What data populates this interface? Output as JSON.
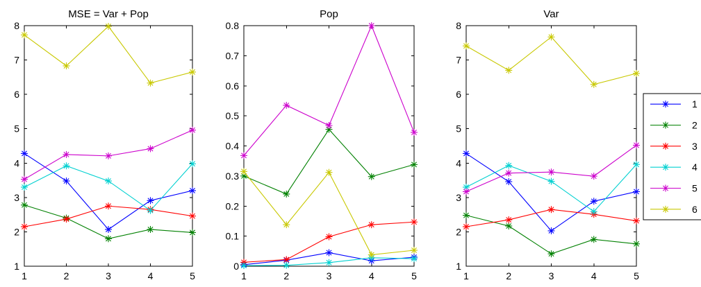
{
  "chart_data": [
    {
      "type": "line",
      "title": "MSE = Var + Pop",
      "x": [
        1,
        2,
        3,
        4,
        5
      ],
      "xlim": [
        1,
        5
      ],
      "ylim": [
        1,
        8
      ],
      "xticks": [
        "1",
        "2",
        "3",
        "4",
        "5"
      ],
      "yticks": [
        "1",
        "2",
        "3",
        "4",
        "5",
        "6",
        "7",
        "8"
      ],
      "series": [
        {
          "name": "1",
          "color": "#0000ff",
          "values": [
            4.28,
            3.48,
            2.07,
            2.91,
            3.2
          ]
        },
        {
          "name": "2",
          "color": "#008000",
          "values": [
            2.78,
            2.4,
            1.8,
            2.07,
            1.98
          ]
        },
        {
          "name": "3",
          "color": "#ff0000",
          "values": [
            2.15,
            2.37,
            2.75,
            2.65,
            2.46
          ]
        },
        {
          "name": "4",
          "color": "#00d0d0",
          "values": [
            3.3,
            3.92,
            3.48,
            2.62,
            3.98
          ]
        },
        {
          "name": "5",
          "color": "#cc00cc",
          "values": [
            3.53,
            4.25,
            4.21,
            4.42,
            4.96
          ]
        },
        {
          "name": "6",
          "color": "#c8c800",
          "values": [
            7.73,
            6.83,
            7.98,
            6.33,
            6.65
          ]
        }
      ]
    },
    {
      "type": "line",
      "title": "Pop",
      "x": [
        1,
        2,
        3,
        4,
        5
      ],
      "xlim": [
        1,
        5
      ],
      "ylim": [
        0,
        0.8
      ],
      "xticks": [
        "1",
        "2",
        "3",
        "4",
        "5"
      ],
      "yticks": [
        "0",
        "0.1",
        "0.2",
        "0.3",
        "0.4",
        "0.5",
        "0.6",
        "0.7",
        "0.8"
      ],
      "series": [
        {
          "name": "1",
          "color": "#0000ff",
          "values": [
            0.005,
            0.02,
            0.045,
            0.018,
            0.03
          ]
        },
        {
          "name": "2",
          "color": "#008000",
          "values": [
            0.3,
            0.24,
            0.455,
            0.298,
            0.338
          ]
        },
        {
          "name": "3",
          "color": "#ff0000",
          "values": [
            0.013,
            0.022,
            0.098,
            0.138,
            0.147
          ]
        },
        {
          "name": "4",
          "color": "#00d0d0",
          "values": [
            0.002,
            0.003,
            0.012,
            0.028,
            0.025
          ]
        },
        {
          "name": "5",
          "color": "#cc00cc",
          "values": [
            0.368,
            0.535,
            0.468,
            0.8,
            0.445
          ]
        },
        {
          "name": "6",
          "color": "#c8c800",
          "values": [
            0.315,
            0.138,
            0.312,
            0.038,
            0.053
          ]
        }
      ]
    },
    {
      "type": "line",
      "title": "Var",
      "x": [
        1,
        2,
        3,
        4,
        5
      ],
      "xlim": [
        1,
        5
      ],
      "ylim": [
        1,
        8
      ],
      "xticks": [
        "1",
        "2",
        "3",
        "4",
        "5"
      ],
      "yticks": [
        "1",
        "2",
        "3",
        "4",
        "5",
        "6",
        "7",
        "8"
      ],
      "series": [
        {
          "name": "1",
          "color": "#0000ff",
          "values": [
            4.28,
            3.46,
            2.03,
            2.89,
            3.17
          ]
        },
        {
          "name": "2",
          "color": "#008000",
          "values": [
            2.48,
            2.17,
            1.36,
            1.78,
            1.65
          ]
        },
        {
          "name": "3",
          "color": "#ff0000",
          "values": [
            2.15,
            2.35,
            2.65,
            2.51,
            2.32
          ]
        },
        {
          "name": "4",
          "color": "#00d0d0",
          "values": [
            3.3,
            3.93,
            3.47,
            2.59,
            3.96
          ]
        },
        {
          "name": "5",
          "color": "#cc00cc",
          "values": [
            3.17,
            3.71,
            3.74,
            3.62,
            4.52
          ]
        },
        {
          "name": "6",
          "color": "#c8c800",
          "values": [
            7.41,
            6.7,
            7.67,
            6.29,
            6.61
          ]
        }
      ]
    }
  ],
  "legend": {
    "placement": "right",
    "entries": [
      {
        "label": "1",
        "color": "#0000ff"
      },
      {
        "label": "2",
        "color": "#008000"
      },
      {
        "label": "3",
        "color": "#ff0000"
      },
      {
        "label": "4",
        "color": "#00d0d0"
      },
      {
        "label": "5",
        "color": "#cc00cc"
      },
      {
        "label": "6",
        "color": "#c8c800"
      }
    ]
  },
  "grid": false,
  "marker": "asterisk"
}
